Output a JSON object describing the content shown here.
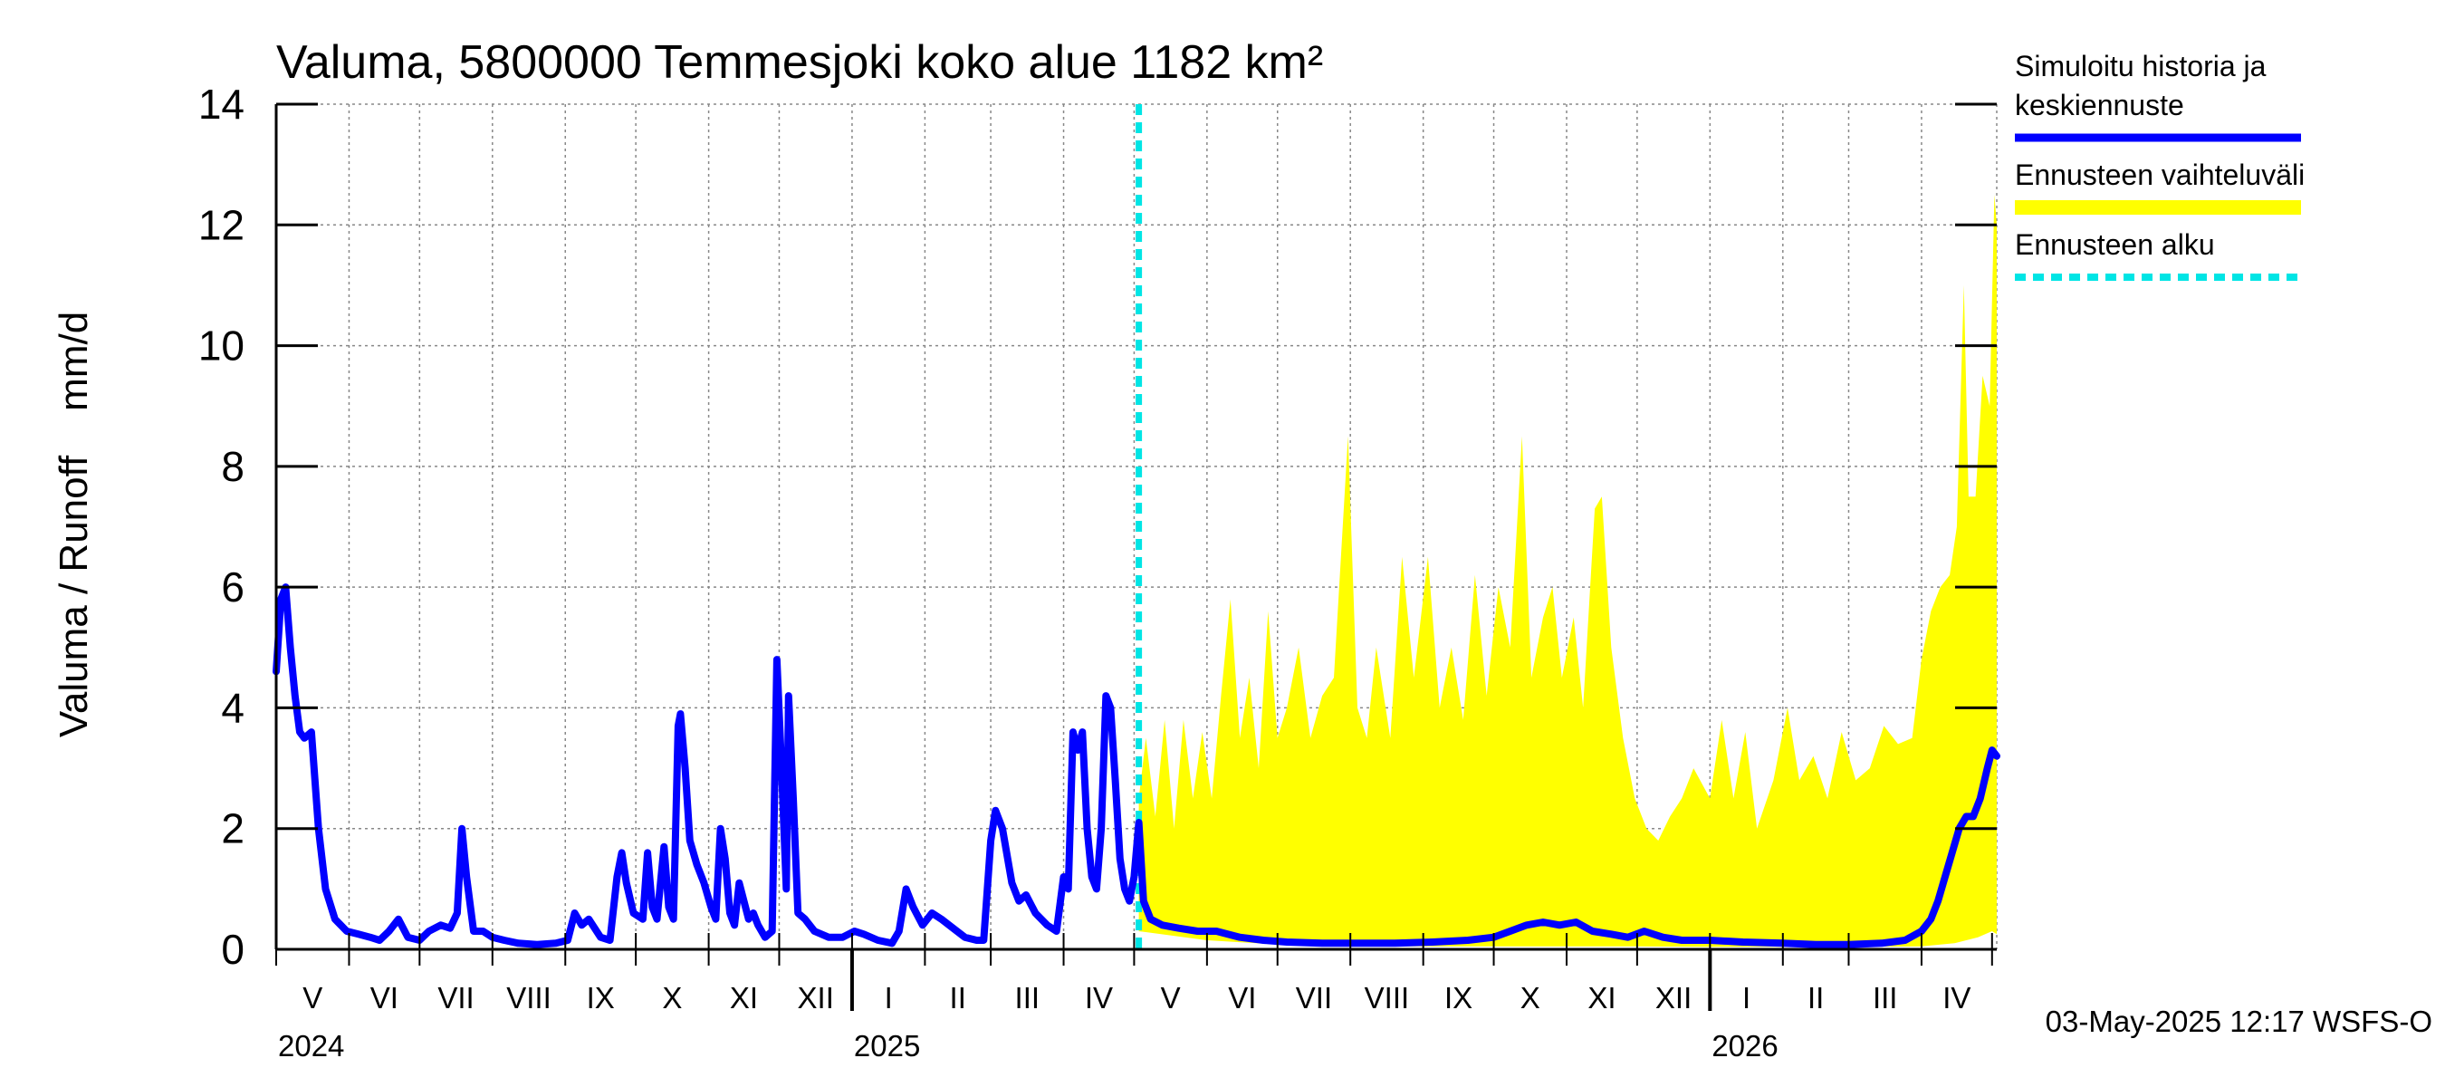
{
  "chart_data": {
    "type": "line",
    "title": "Valuma, 5800000 Temmesjoki koko alue 1182 km²",
    "ylabel": "Valuma / Runoff    mm/d",
    "ylim": [
      0,
      14
    ],
    "yticks": [
      0,
      2,
      4,
      6,
      8,
      10,
      12,
      14
    ],
    "x_range": [
      "2024-05-01",
      "2026-05-03"
    ],
    "grid": true,
    "legend_position": "right",
    "month_ticks": [
      "V",
      "VI",
      "VII",
      "VIII",
      "IX",
      "X",
      "XI",
      "XII",
      "I",
      "II",
      "III",
      "IV",
      "V",
      "VI",
      "VII",
      "VIII",
      "IX",
      "X",
      "XI",
      "XII",
      "I",
      "II",
      "III",
      "IV"
    ],
    "year_labels": [
      "2024",
      "2025",
      "2026"
    ],
    "forecast_start": "2025-05-03",
    "timestamp": "03-May-2025 12:17 WSFS-O",
    "colors": {
      "simulated": "#0000ff",
      "range": "#ffff00",
      "forecast_start": "#00e5e5"
    },
    "legend": [
      {
        "label_lines": [
          "Simuloitu historia ja",
          "keskiennuste"
        ],
        "kind": "line",
        "color": "#0000ff"
      },
      {
        "label_lines": [
          "Ennusteen vaihteluväli"
        ],
        "kind": "band",
        "color": "#ffff00"
      },
      {
        "label_lines": [
          "Ennusteen alku"
        ],
        "kind": "dashed",
        "color": "#00e5e5"
      }
    ],
    "series": [
      {
        "name": "Simuloitu historia ja keskiennuste",
        "points": [
          [
            "2024-05-01",
            4.6
          ],
          [
            "2024-05-03",
            5.8
          ],
          [
            "2024-05-05",
            6.0
          ],
          [
            "2024-05-07",
            5.0
          ],
          [
            "2024-05-09",
            4.2
          ],
          [
            "2024-05-11",
            3.6
          ],
          [
            "2024-05-13",
            3.5
          ],
          [
            "2024-05-16",
            3.6
          ],
          [
            "2024-05-19",
            2.0
          ],
          [
            "2024-05-22",
            1.0
          ],
          [
            "2024-05-26",
            0.5
          ],
          [
            "2024-05-31",
            0.3
          ],
          [
            "2024-06-05",
            0.25
          ],
          [
            "2024-06-10",
            0.2
          ],
          [
            "2024-06-14",
            0.15
          ],
          [
            "2024-06-18",
            0.3
          ],
          [
            "2024-06-22",
            0.5
          ],
          [
            "2024-06-26",
            0.2
          ],
          [
            "2024-07-01",
            0.15
          ],
          [
            "2024-07-05",
            0.3
          ],
          [
            "2024-07-10",
            0.4
          ],
          [
            "2024-07-14",
            0.35
          ],
          [
            "2024-07-17",
            0.6
          ],
          [
            "2024-07-19",
            2.0
          ],
          [
            "2024-07-21",
            1.2
          ],
          [
            "2024-07-24",
            0.3
          ],
          [
            "2024-07-28",
            0.3
          ],
          [
            "2024-08-01",
            0.2
          ],
          [
            "2024-08-06",
            0.15
          ],
          [
            "2024-08-12",
            0.1
          ],
          [
            "2024-08-20",
            0.08
          ],
          [
            "2024-08-28",
            0.1
          ],
          [
            "2024-09-02",
            0.15
          ],
          [
            "2024-09-05",
            0.6
          ],
          [
            "2024-09-08",
            0.4
          ],
          [
            "2024-09-11",
            0.5
          ],
          [
            "2024-09-16",
            0.2
          ],
          [
            "2024-09-20",
            0.15
          ],
          [
            "2024-09-23",
            1.2
          ],
          [
            "2024-09-25",
            1.6
          ],
          [
            "2024-09-27",
            1.1
          ],
          [
            "2024-09-30",
            0.6
          ],
          [
            "2024-10-04",
            0.5
          ],
          [
            "2024-10-06",
            1.6
          ],
          [
            "2024-10-08",
            0.7
          ],
          [
            "2024-10-10",
            0.5
          ],
          [
            "2024-10-13",
            1.7
          ],
          [
            "2024-10-15",
            0.7
          ],
          [
            "2024-10-17",
            0.5
          ],
          [
            "2024-10-19",
            3.7
          ],
          [
            "2024-10-20",
            3.9
          ],
          [
            "2024-10-22",
            3.0
          ],
          [
            "2024-10-24",
            1.8
          ],
          [
            "2024-10-27",
            1.4
          ],
          [
            "2024-10-30",
            1.1
          ],
          [
            "2024-11-02",
            0.7
          ],
          [
            "2024-11-04",
            0.5
          ],
          [
            "2024-11-06",
            2.0
          ],
          [
            "2024-11-08",
            1.5
          ],
          [
            "2024-11-10",
            0.6
          ],
          [
            "2024-11-12",
            0.4
          ],
          [
            "2024-11-14",
            1.1
          ],
          [
            "2024-11-16",
            0.8
          ],
          [
            "2024-11-18",
            0.5
          ],
          [
            "2024-11-20",
            0.6
          ],
          [
            "2024-11-22",
            0.4
          ],
          [
            "2024-11-25",
            0.2
          ],
          [
            "2024-11-28",
            0.3
          ],
          [
            "2024-11-30",
            4.8
          ],
          [
            "2024-12-02",
            3.0
          ],
          [
            "2024-12-04",
            1.0
          ],
          [
            "2024-12-05",
            4.2
          ],
          [
            "2024-12-07",
            2.5
          ],
          [
            "2024-12-09",
            0.6
          ],
          [
            "2024-12-12",
            0.5
          ],
          [
            "2024-12-16",
            0.3
          ],
          [
            "2024-12-22",
            0.2
          ],
          [
            "2024-12-28",
            0.2
          ],
          [
            "2025-01-02",
            0.3
          ],
          [
            "2025-01-06",
            0.25
          ],
          [
            "2025-01-12",
            0.15
          ],
          [
            "2025-01-18",
            0.1
          ],
          [
            "2025-01-21",
            0.3
          ],
          [
            "2025-01-24",
            1.0
          ],
          [
            "2025-01-27",
            0.7
          ],
          [
            "2025-01-31",
            0.4
          ],
          [
            "2025-02-04",
            0.6
          ],
          [
            "2025-02-08",
            0.5
          ],
          [
            "2025-02-13",
            0.35
          ],
          [
            "2025-02-18",
            0.2
          ],
          [
            "2025-02-23",
            0.15
          ],
          [
            "2025-02-26",
            0.15
          ],
          [
            "2025-03-01",
            1.8
          ],
          [
            "2025-03-03",
            2.3
          ],
          [
            "2025-03-06",
            2.0
          ],
          [
            "2025-03-10",
            1.1
          ],
          [
            "2025-03-13",
            0.8
          ],
          [
            "2025-03-16",
            0.9
          ],
          [
            "2025-03-20",
            0.6
          ],
          [
            "2025-03-25",
            0.4
          ],
          [
            "2025-03-29",
            0.3
          ],
          [
            "2025-04-01",
            1.2
          ],
          [
            "2025-04-03",
            1.0
          ],
          [
            "2025-04-05",
            3.6
          ],
          [
            "2025-04-07",
            3.3
          ],
          [
            "2025-04-09",
            3.6
          ],
          [
            "2025-04-11",
            2.0
          ],
          [
            "2025-04-13",
            1.2
          ],
          [
            "2025-04-15",
            1.0
          ],
          [
            "2025-04-17",
            2.0
          ],
          [
            "2025-04-19",
            4.2
          ],
          [
            "2025-04-21",
            4.0
          ],
          [
            "2025-04-23",
            2.8
          ],
          [
            "2025-04-25",
            1.5
          ],
          [
            "2025-04-27",
            1.0
          ],
          [
            "2025-04-29",
            0.8
          ],
          [
            "2025-05-01",
            1.2
          ],
          [
            "2025-05-03",
            2.1
          ],
          [
            "2025-05-05",
            0.8
          ],
          [
            "2025-05-08",
            0.5
          ],
          [
            "2025-05-13",
            0.4
          ],
          [
            "2025-05-20",
            0.35
          ],
          [
            "2025-05-28",
            0.3
          ],
          [
            "2025-06-05",
            0.3
          ],
          [
            "2025-06-15",
            0.2
          ],
          [
            "2025-06-25",
            0.15
          ],
          [
            "2025-07-05",
            0.12
          ],
          [
            "2025-07-20",
            0.1
          ],
          [
            "2025-08-05",
            0.1
          ],
          [
            "2025-08-20",
            0.1
          ],
          [
            "2025-09-05",
            0.12
          ],
          [
            "2025-09-20",
            0.15
          ],
          [
            "2025-10-01",
            0.2
          ],
          [
            "2025-10-08",
            0.3
          ],
          [
            "2025-10-15",
            0.4
          ],
          [
            "2025-10-22",
            0.45
          ],
          [
            "2025-10-29",
            0.4
          ],
          [
            "2025-11-05",
            0.45
          ],
          [
            "2025-11-12",
            0.3
          ],
          [
            "2025-11-20",
            0.25
          ],
          [
            "2025-11-27",
            0.2
          ],
          [
            "2025-12-04",
            0.3
          ],
          [
            "2025-12-12",
            0.2
          ],
          [
            "2025-12-20",
            0.15
          ],
          [
            "2026-01-01",
            0.15
          ],
          [
            "2026-01-15",
            0.12
          ],
          [
            "2026-02-01",
            0.1
          ],
          [
            "2026-02-15",
            0.08
          ],
          [
            "2026-03-01",
            0.08
          ],
          [
            "2026-03-15",
            0.1
          ],
          [
            "2026-03-25",
            0.15
          ],
          [
            "2026-04-01",
            0.3
          ],
          [
            "2026-04-05",
            0.5
          ],
          [
            "2026-04-08",
            0.8
          ],
          [
            "2026-04-11",
            1.2
          ],
          [
            "2026-04-14",
            1.6
          ],
          [
            "2026-04-17",
            2.0
          ],
          [
            "2026-04-20",
            2.2
          ],
          [
            "2026-04-23",
            2.2
          ],
          [
            "2026-04-26",
            2.5
          ],
          [
            "2026-04-29",
            3.0
          ],
          [
            "2026-05-01",
            3.3
          ],
          [
            "2026-05-03",
            3.2
          ]
        ]
      },
      {
        "name": "Ennusteen vaihteluväli",
        "kind": "band",
        "upper": [
          [
            "2025-05-03",
            2.5
          ],
          [
            "2025-05-06",
            3.5
          ],
          [
            "2025-05-10",
            2.2
          ],
          [
            "2025-05-14",
            3.8
          ],
          [
            "2025-05-18",
            2.0
          ],
          [
            "2025-05-22",
            3.8
          ],
          [
            "2025-05-26",
            2.5
          ],
          [
            "2025-05-30",
            3.6
          ],
          [
            "2025-06-03",
            2.5
          ],
          [
            "2025-06-07",
            4.2
          ],
          [
            "2025-06-11",
            5.8
          ],
          [
            "2025-06-15",
            3.5
          ],
          [
            "2025-06-19",
            4.5
          ],
          [
            "2025-06-23",
            3.0
          ],
          [
            "2025-06-27",
            5.6
          ],
          [
            "2025-07-01",
            3.5
          ],
          [
            "2025-07-05",
            4.0
          ],
          [
            "2025-07-10",
            5.0
          ],
          [
            "2025-07-15",
            3.5
          ],
          [
            "2025-07-20",
            4.2
          ],
          [
            "2025-07-25",
            4.5
          ],
          [
            "2025-07-31",
            8.5
          ],
          [
            "2025-08-04",
            4.0
          ],
          [
            "2025-08-08",
            3.5
          ],
          [
            "2025-08-12",
            5.0
          ],
          [
            "2025-08-18",
            3.5
          ],
          [
            "2025-08-23",
            6.5
          ],
          [
            "2025-08-28",
            4.5
          ],
          [
            "2025-09-03",
            6.5
          ],
          [
            "2025-09-08",
            4.0
          ],
          [
            "2025-09-13",
            5.0
          ],
          [
            "2025-09-18",
            3.8
          ],
          [
            "2025-09-23",
            6.2
          ],
          [
            "2025-09-28",
            4.2
          ],
          [
            "2025-10-03",
            6.0
          ],
          [
            "2025-10-08",
            5.0
          ],
          [
            "2025-10-13",
            8.5
          ],
          [
            "2025-10-17",
            4.5
          ],
          [
            "2025-10-22",
            5.5
          ],
          [
            "2025-10-26",
            6.0
          ],
          [
            "2025-10-30",
            4.5
          ],
          [
            "2025-11-04",
            5.5
          ],
          [
            "2025-11-08",
            4.0
          ],
          [
            "2025-11-13",
            7.3
          ],
          [
            "2025-11-16",
            7.5
          ],
          [
            "2025-11-20",
            5.0
          ],
          [
            "2025-11-25",
            3.5
          ],
          [
            "2025-11-30",
            2.5
          ],
          [
            "2025-12-05",
            2.0
          ],
          [
            "2025-12-10",
            1.8
          ],
          [
            "2025-12-15",
            2.2
          ],
          [
            "2025-12-20",
            2.5
          ],
          [
            "2025-12-25",
            3.0
          ],
          [
            "2026-01-01",
            2.5
          ],
          [
            "2026-01-06",
            3.8
          ],
          [
            "2026-01-11",
            2.5
          ],
          [
            "2026-01-16",
            3.6
          ],
          [
            "2026-01-21",
            2.0
          ],
          [
            "2026-01-28",
            2.8
          ],
          [
            "2026-02-03",
            4.0
          ],
          [
            "2026-02-08",
            2.8
          ],
          [
            "2026-02-14",
            3.2
          ],
          [
            "2026-02-20",
            2.5
          ],
          [
            "2026-02-26",
            3.6
          ],
          [
            "2026-03-04",
            2.8
          ],
          [
            "2026-03-10",
            3.0
          ],
          [
            "2026-03-16",
            3.7
          ],
          [
            "2026-03-22",
            3.4
          ],
          [
            "2026-03-28",
            3.5
          ],
          [
            "2026-04-01",
            4.8
          ],
          [
            "2026-04-05",
            5.6
          ],
          [
            "2026-04-09",
            6.0
          ],
          [
            "2026-04-13",
            6.2
          ],
          [
            "2026-04-16",
            7.0
          ],
          [
            "2026-04-19",
            11.0
          ],
          [
            "2026-04-21",
            7.5
          ],
          [
            "2026-04-24",
            7.5
          ],
          [
            "2026-04-27",
            9.5
          ],
          [
            "2026-04-30",
            9.0
          ],
          [
            "2026-05-02",
            12.5
          ],
          [
            "2026-05-03",
            12.0
          ]
        ],
        "lower": [
          [
            "2025-05-03",
            0.3
          ],
          [
            "2025-06-01",
            0.15
          ],
          [
            "2025-07-01",
            0.08
          ],
          [
            "2025-08-01",
            0.05
          ],
          [
            "2025-09-01",
            0.05
          ],
          [
            "2025-10-01",
            0.05
          ],
          [
            "2025-11-01",
            0.05
          ],
          [
            "2025-12-01",
            0.05
          ],
          [
            "2026-01-01",
            0.04
          ],
          [
            "2026-02-01",
            0.04
          ],
          [
            "2026-03-01",
            0.04
          ],
          [
            "2026-04-01",
            0.05
          ],
          [
            "2026-04-15",
            0.1
          ],
          [
            "2026-04-25",
            0.2
          ],
          [
            "2026-05-01",
            0.3
          ],
          [
            "2026-05-03",
            0.25
          ]
        ]
      }
    ]
  }
}
